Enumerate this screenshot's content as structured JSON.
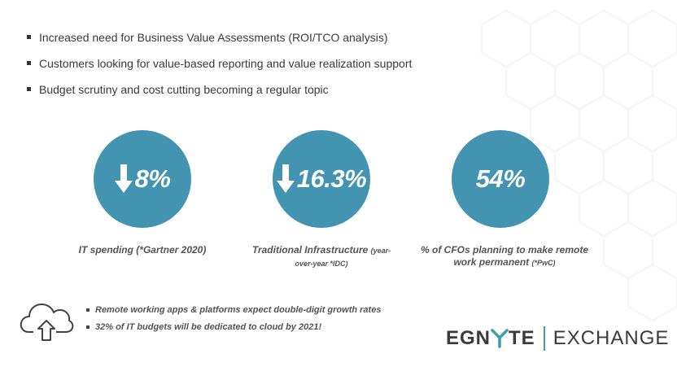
{
  "bullets": [
    "Increased need for Business Value Assessments (ROI/TCO analysis)",
    "Customers looking for value-based reporting and value realization support",
    "Budget scrutiny and cost cutting becoming a regular topic"
  ],
  "stats": [
    {
      "value": "8%",
      "arrow": "down-arrow-icon",
      "caption": "IT spending (*Gartner 2020)",
      "caption_note": ""
    },
    {
      "value": "16.3%",
      "arrow": "down-arrow-icon",
      "caption": "Traditional Infrastructure",
      "caption_note": "(year-over-year *IDC)"
    },
    {
      "value": "54%",
      "arrow": "",
      "caption": "% of CFOs planning to make remote work permanent",
      "caption_note": "(*PwC)"
    }
  ],
  "sub_bullets": [
    "Remote working apps & platforms expect double-digit growth rates",
    "32% of IT budgets will be dedicated to cloud by 2021!"
  ],
  "logo": {
    "brand_left": "EGN",
    "brand_right": "TE",
    "product": "EXCHANGE"
  },
  "colors": {
    "circle": "#4394b0",
    "divider": "#3aa0a8",
    "text": "#333333"
  }
}
